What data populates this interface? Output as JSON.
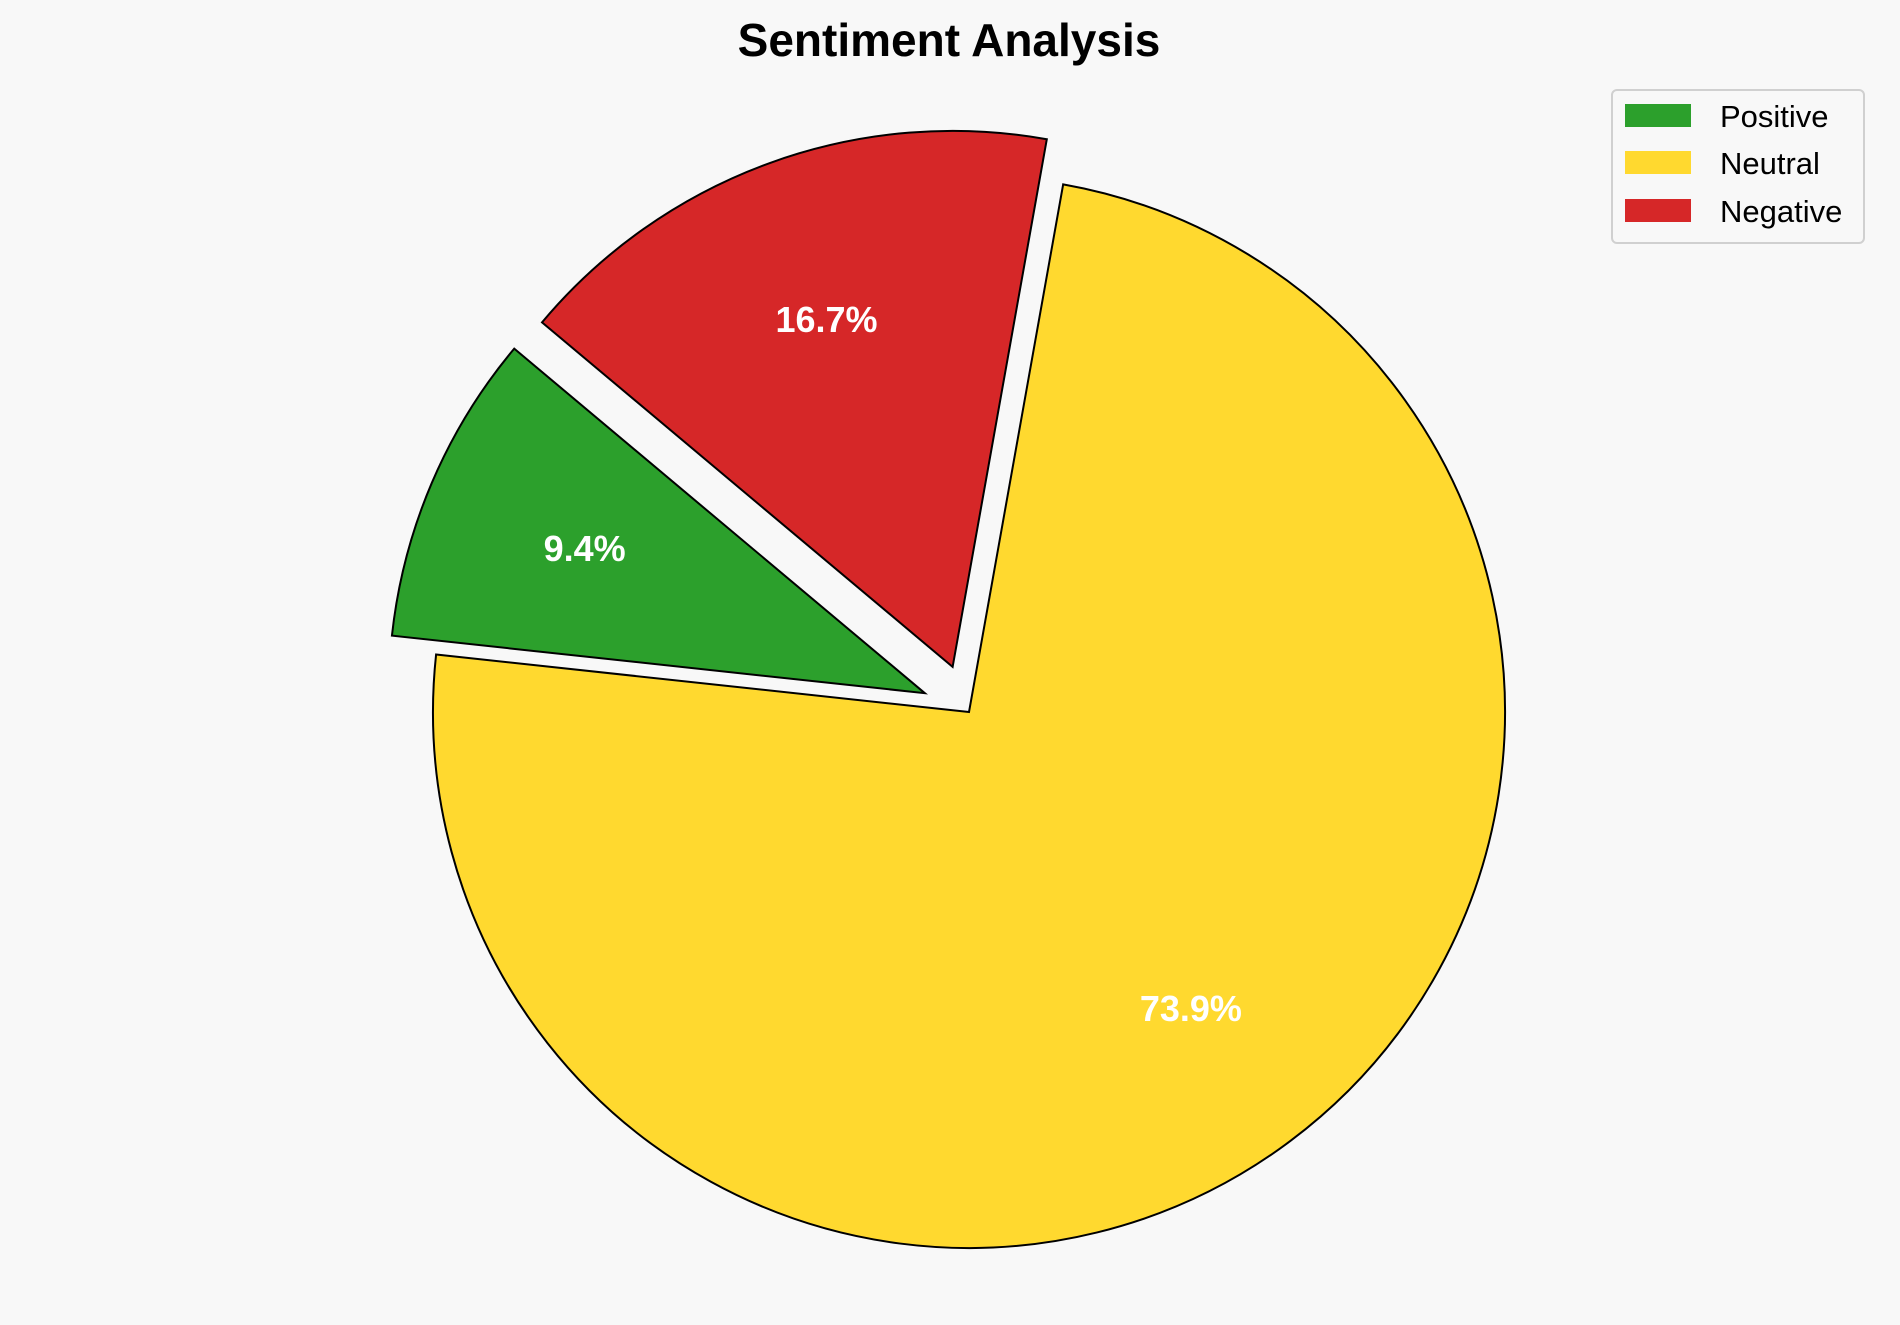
{
  "chart_data": {
    "type": "pie",
    "title": "Sentiment Analysis",
    "labels": [
      "Positive",
      "Neutral",
      "Negative"
    ],
    "values": [
      9.4,
      73.9,
      16.7
    ],
    "value_labels": [
      "9.4%",
      "73.9%",
      "16.7%"
    ],
    "colors": [
      "#2ca02c",
      "#ffd92f",
      "#d62728"
    ],
    "exploded": [
      true,
      false,
      true
    ],
    "start_angle_deg": 140,
    "direction": "counterclockwise",
    "edge_color": "#000000",
    "legend": {
      "placement": "top-right",
      "entries": [
        "Positive",
        "Neutral",
        "Negative"
      ]
    },
    "background": "#f8f8f8"
  }
}
